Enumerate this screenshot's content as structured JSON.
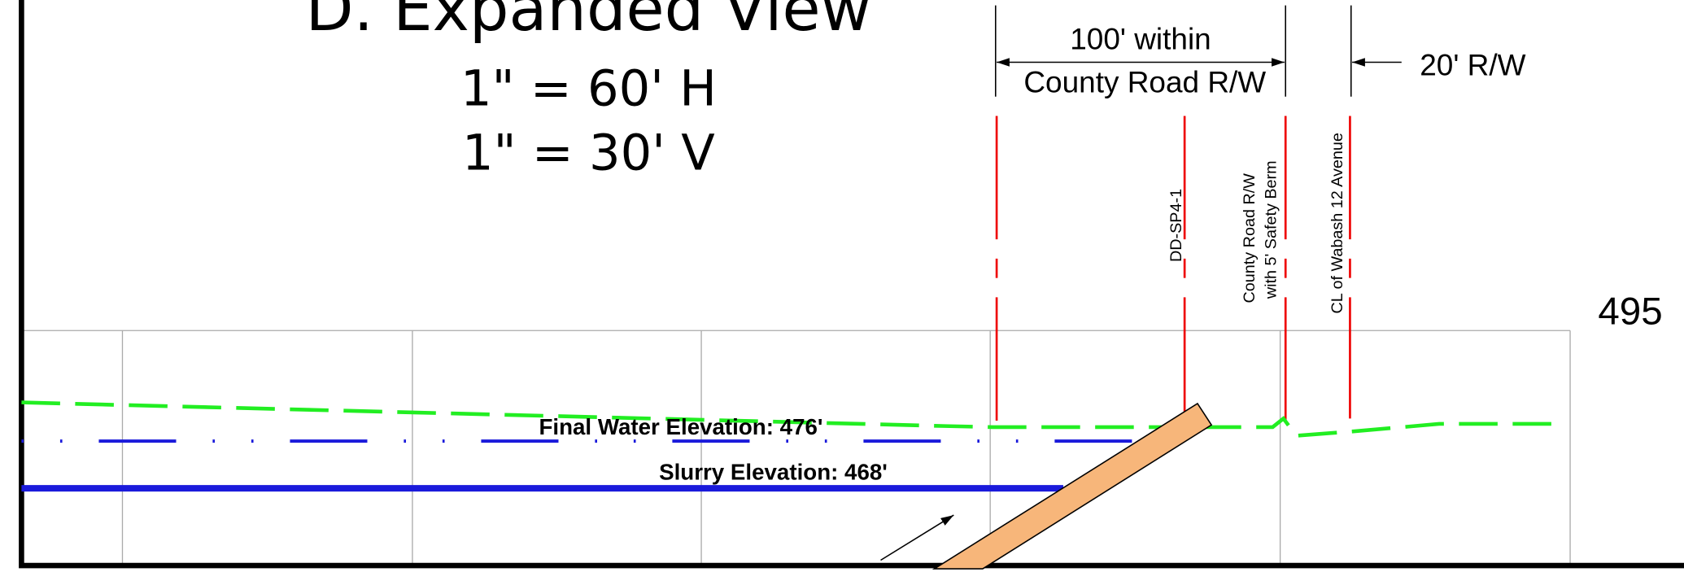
{
  "header": {
    "title": "D. Expanded View",
    "scale_h": "1\" = 60' H",
    "scale_v": "1\" = 30' V"
  },
  "dimensions": {
    "span_line1": "100' within",
    "span_line2": "County Road R/W",
    "side": "20' R/W"
  },
  "markers": [
    {
      "label": "DD-SP4-1"
    },
    {
      "label": "County Road R/W",
      "sublabel": "with 5' Safety Berm"
    },
    {
      "label": "CL of Wabash 12 Avenue"
    }
  ],
  "grid_label": "495",
  "elevations": {
    "water": "Final Water Elevation: 476'",
    "slurry": "Slurry Elevation: 468'"
  }
}
